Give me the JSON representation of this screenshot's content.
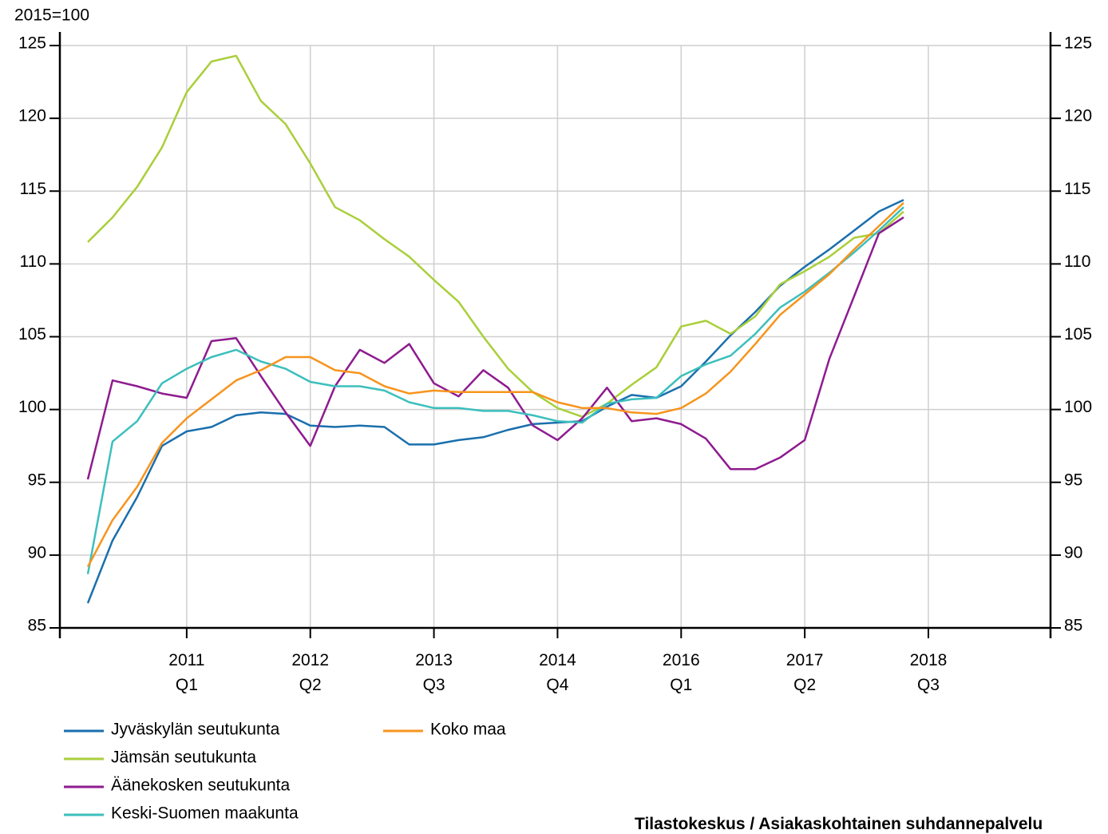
{
  "chart_data": {
    "type": "line",
    "y_unit_label": "2015=100",
    "source": "Tilastokeskus / Asiakaskohtainen suhdannepalvelu",
    "categories": [
      null,
      null,
      null,
      null,
      "2011\nQ1",
      null,
      null,
      null,
      null,
      "2012\nQ2",
      null,
      null,
      null,
      null,
      "2013\nQ3",
      null,
      null,
      null,
      null,
      "2014\nQ4",
      null,
      null,
      null,
      null,
      "2016\nQ1",
      null,
      null,
      null,
      null,
      "2017\nQ2",
      null,
      null,
      null,
      null,
      "2018\nQ3",
      null,
      null,
      null,
      null
    ],
    "ylim": [
      85,
      125
    ],
    "yticks": [
      85,
      90,
      95,
      100,
      105,
      110,
      115,
      120,
      125
    ],
    "y2lim": [
      85,
      125
    ],
    "y2ticks": [
      85,
      90,
      95,
      100,
      105,
      110,
      115,
      120,
      125
    ],
    "grid": true,
    "series": [
      {
        "name": "Jyväskylän seutukunta",
        "color": "#1a6fad",
        "values": [
          86.7,
          91,
          94,
          97.5,
          98.5,
          98.8,
          99.6,
          99.8,
          99.7,
          98.9,
          98.8,
          98.9,
          98.8,
          97.6,
          97.6,
          97.9,
          98.1,
          98.6,
          99,
          99.1,
          99.2,
          100.2,
          101,
          100.8,
          101.6,
          103.3,
          105.1,
          106.7,
          108.5,
          109.8,
          111,
          112.3,
          113.6,
          114.4,
          null,
          null,
          null,
          null,
          null
        ]
      },
      {
        "name": "Jämsän seutukunta",
        "color": "#a9cf3a",
        "values": [
          111.5,
          113.2,
          115.3,
          118,
          121.8,
          123.9,
          124.3,
          121.2,
          119.6,
          116.9,
          113.9,
          113,
          111.7,
          110.5,
          108.9,
          107.4,
          105,
          102.8,
          101.2,
          100.1,
          99.5,
          100.4,
          101.7,
          102.9,
          105.7,
          106.1,
          105.2,
          106.4,
          108.6,
          109.5,
          110.5,
          111.8,
          112.1,
          113.6,
          null,
          null,
          null,
          null,
          null
        ]
      },
      {
        "name": "Äänekosken seutukunta",
        "color": "#8e1b8f",
        "values": [
          95.2,
          102,
          101.6,
          101.1,
          100.8,
          104.7,
          104.9,
          102.3,
          99.8,
          97.5,
          101.6,
          104.1,
          103.2,
          104.5,
          101.8,
          100.9,
          102.7,
          101.5,
          98.9,
          97.9,
          99.4,
          101.5,
          99.2,
          99.4,
          99,
          98,
          95.9,
          95.9,
          96.7,
          97.9,
          103.5,
          107.8,
          112.1,
          113.2,
          null,
          null,
          null,
          null,
          null
        ]
      },
      {
        "name": "Keski-Suomen maakunta",
        "color": "#3cbfbd",
        "values": [
          88.7,
          97.8,
          99.2,
          101.8,
          102.8,
          103.6,
          104.1,
          103.3,
          102.8,
          101.9,
          101.6,
          101.6,
          101.3,
          100.5,
          100.1,
          100.1,
          99.9,
          99.9,
          99.6,
          99.2,
          99.1,
          100.4,
          100.7,
          100.8,
          102.3,
          103.1,
          103.7,
          105.2,
          107,
          108.1,
          109.4,
          110.8,
          112.3,
          113.9,
          null,
          null,
          null,
          null,
          null
        ]
      },
      {
        "name": "Koko maa",
        "color": "#f7941d",
        "values": [
          89.2,
          92.4,
          94.7,
          97.7,
          99.4,
          100.7,
          102,
          102.7,
          103.6,
          103.6,
          102.7,
          102.5,
          101.6,
          101.1,
          101.3,
          101.2,
          101.2,
          101.2,
          101.2,
          100.5,
          100.1,
          100.1,
          99.8,
          99.7,
          100.1,
          101.1,
          102.6,
          104.5,
          106.5,
          107.9,
          109.3,
          111,
          112.6,
          114.2,
          null,
          null,
          null,
          null,
          null
        ]
      }
    ]
  }
}
